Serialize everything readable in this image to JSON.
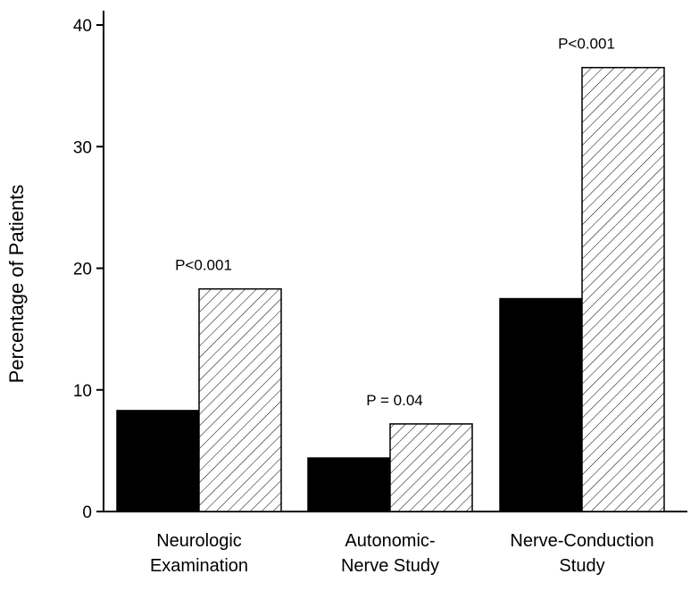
{
  "chart_data": {
    "type": "bar",
    "ylabel": "Percentage of Patients",
    "ylim": [
      0,
      40
    ],
    "yticks": [
      "0",
      "10",
      "20",
      "30",
      "40"
    ],
    "categories": [
      [
        "Neurologic",
        "Examination"
      ],
      [
        "Autonomic-",
        "Nerve Study"
      ],
      [
        "Nerve-Conduction",
        "Study"
      ]
    ],
    "series": [
      {
        "style": "solid",
        "color": "#000000",
        "values": [
          8.3,
          4.4,
          17.5
        ]
      },
      {
        "style": "hatched",
        "color": "#ffffff",
        "values": [
          18.3,
          7.2,
          36.5
        ]
      }
    ],
    "annotations": [
      "P<0.001",
      "P = 0.04",
      "P<0.001"
    ],
    "grid": false
  }
}
